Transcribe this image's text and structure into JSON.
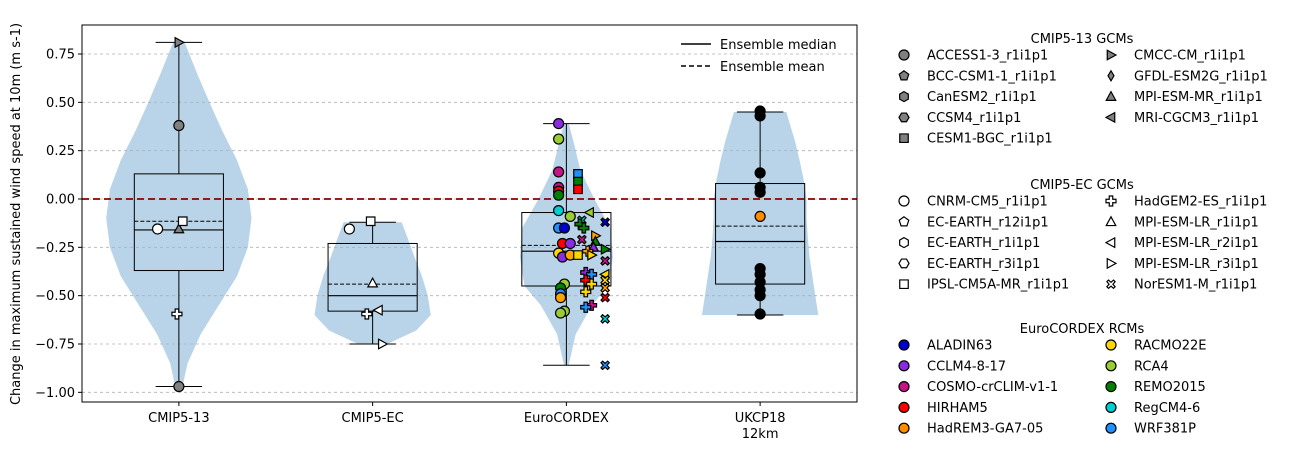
{
  "chart_data": {
    "type": "violin-box-strip",
    "xlabel": "",
    "ylabel": "Change in maximum sustained wind speed at 10m (m s-1)",
    "ylim": [
      -1.05,
      0.9
    ],
    "yticks": [
      0.75,
      0.5,
      0.25,
      0.0,
      -0.25,
      -0.5,
      -0.75,
      -1.0
    ],
    "ytick_labels": [
      "0.75",
      "0.50",
      "0.25",
      "0.00",
      "−0.25",
      "−0.50",
      "−0.75",
      "−1.00"
    ],
    "grid": "horizontal dashed",
    "reference_line": {
      "y": 0.0,
      "color": "#8b0000",
      "style": "dashed"
    },
    "violin_color": "#b9d4e8",
    "categories": [
      {
        "name": "CMIP5-13",
        "tick_label": [
          "CMIP5-13"
        ],
        "box": {
          "q1": -0.37,
          "median": -0.16,
          "mean": -0.115,
          "q3": 0.13,
          "whislo": -0.97,
          "whishi": 0.81
        },
        "violin": {
          "ymin": -0.97,
          "ymax": 0.81,
          "scale": 0.75,
          "profile": [
            [
              -0.97,
              0.05
            ],
            [
              -0.85,
              0.12
            ],
            [
              -0.7,
              0.3
            ],
            [
              -0.55,
              0.55
            ],
            [
              -0.4,
              0.8
            ],
            [
              -0.25,
              0.95
            ],
            [
              -0.1,
              1.0
            ],
            [
              0.05,
              0.95
            ],
            [
              0.2,
              0.8
            ],
            [
              0.35,
              0.6
            ],
            [
              0.5,
              0.42
            ],
            [
              0.65,
              0.25
            ],
            [
              0.81,
              0.08
            ]
          ]
        }
      },
      {
        "name": "CMIP5-EC",
        "tick_label": [
          "CMIP5-EC"
        ],
        "box": {
          "q1": -0.58,
          "median": -0.5,
          "mean": -0.44,
          "q3": -0.23,
          "whislo": -0.75,
          "whishi": -0.12
        },
        "violin": {
          "ymin": -0.75,
          "ymax": -0.12,
          "scale": 0.6,
          "profile": [
            [
              -0.75,
              0.25
            ],
            [
              -0.68,
              0.75
            ],
            [
              -0.6,
              1.0
            ],
            [
              -0.5,
              0.95
            ],
            [
              -0.4,
              0.85
            ],
            [
              -0.3,
              0.72
            ],
            [
              -0.2,
              0.6
            ],
            [
              -0.12,
              0.5
            ]
          ]
        }
      },
      {
        "name": "EuroCORDEX",
        "tick_label": [
          "EuroCORDEX"
        ],
        "box": {
          "q1": -0.45,
          "median": -0.27,
          "mean": -0.24,
          "q3": -0.07,
          "whislo": -0.86,
          "whishi": 0.39
        },
        "violin": {
          "ymin": -0.86,
          "ymax": 0.39,
          "scale": 0.48,
          "profile": [
            [
              -0.86,
              0.05
            ],
            [
              -0.7,
              0.2
            ],
            [
              -0.55,
              0.55
            ],
            [
              -0.45,
              0.9
            ],
            [
              -0.3,
              1.0
            ],
            [
              -0.15,
              0.95
            ],
            [
              0.0,
              0.6
            ],
            [
              0.15,
              0.3
            ],
            [
              0.3,
              0.15
            ],
            [
              0.39,
              0.05
            ]
          ]
        }
      },
      {
        "name": "UKCP18 12km",
        "tick_label": [
          "UKCP18",
          "12km"
        ],
        "box": {
          "q1": -0.44,
          "median": -0.22,
          "mean": -0.14,
          "q3": 0.08,
          "whislo": -0.6,
          "whishi": 0.45
        },
        "violin": {
          "ymin": -0.6,
          "ymax": 0.45,
          "scale": 0.6,
          "profile": [
            [
              -0.6,
              1.0
            ],
            [
              -0.5,
              0.95
            ],
            [
              -0.4,
              0.9
            ],
            [
              -0.3,
              0.85
            ],
            [
              -0.2,
              0.82
            ],
            [
              -0.1,
              0.8
            ],
            [
              0.0,
              0.8
            ],
            [
              0.1,
              0.75
            ],
            [
              0.2,
              0.68
            ],
            [
              0.3,
              0.6
            ],
            [
              0.4,
              0.5
            ],
            [
              0.45,
              0.45
            ]
          ]
        }
      }
    ],
    "points": [
      {
        "cat": 0,
        "dx": 0.0,
        "y": 0.81,
        "marker": ">",
        "fill": "#808080"
      },
      {
        "cat": 0,
        "dx": 0.0,
        "y": 0.38,
        "marker": "o",
        "fill": "#808080"
      },
      {
        "cat": 0,
        "dx": -0.11,
        "y": -0.155,
        "marker": "o",
        "fill": "#ffffff"
      },
      {
        "cat": 0,
        "dx": 0.0,
        "y": -0.155,
        "marker": "^",
        "fill": "#808080"
      },
      {
        "cat": 0,
        "dx": 0.02,
        "y": -0.115,
        "marker": "s",
        "fill": "#ffffff"
      },
      {
        "cat": 0,
        "dx": -0.01,
        "y": -0.595,
        "marker": "P",
        "fill": "#ffffff"
      },
      {
        "cat": 0,
        "dx": 0.0,
        "y": -0.97,
        "marker": "o",
        "fill": "#808080"
      },
      {
        "cat": 1,
        "dx": -0.12,
        "y": -0.155,
        "marker": "o",
        "fill": "#ffffff"
      },
      {
        "cat": 1,
        "dx": -0.01,
        "y": -0.115,
        "marker": "s",
        "fill": "#ffffff"
      },
      {
        "cat": 1,
        "dx": 0.0,
        "y": -0.435,
        "marker": "^",
        "fill": "#ffffff"
      },
      {
        "cat": 1,
        "dx": 0.03,
        "y": -0.575,
        "marker": "<",
        "fill": "#ffffff"
      },
      {
        "cat": 1,
        "dx": -0.03,
        "y": -0.595,
        "marker": "P",
        "fill": "#ffffff"
      },
      {
        "cat": 1,
        "dx": 0.05,
        "y": -0.75,
        "marker": ">",
        "fill": "#ffffff"
      },
      {
        "cat": 2,
        "dx": -0.04,
        "y": 0.39,
        "marker": "o",
        "fill": "#8a2be2"
      },
      {
        "cat": 2,
        "dx": -0.04,
        "y": 0.31,
        "marker": "o",
        "fill": "#9acd32"
      },
      {
        "cat": 2,
        "dx": -0.04,
        "y": 0.14,
        "marker": "o",
        "fill": "#c71585"
      },
      {
        "cat": 2,
        "dx": 0.06,
        "y": 0.13,
        "marker": "s",
        "fill": "#1e90ff"
      },
      {
        "cat": 2,
        "dx": 0.06,
        "y": 0.09,
        "marker": "s",
        "fill": "#008000"
      },
      {
        "cat": 2,
        "dx": -0.04,
        "y": 0.06,
        "marker": "o",
        "fill": "#c71585"
      },
      {
        "cat": 2,
        "dx": -0.04,
        "y": 0.04,
        "marker": "o",
        "fill": "#ff0000"
      },
      {
        "cat": 2,
        "dx": 0.06,
        "y": 0.05,
        "marker": "s",
        "fill": "#ff0000"
      },
      {
        "cat": 2,
        "dx": -0.04,
        "y": 0.02,
        "marker": "o",
        "fill": "#008000"
      },
      {
        "cat": 2,
        "dx": -0.04,
        "y": -0.06,
        "marker": "o",
        "fill": "#00ced1"
      },
      {
        "cat": 2,
        "dx": 0.12,
        "y": -0.07,
        "marker": "<",
        "fill": "#9acd32"
      },
      {
        "cat": 2,
        "dx": 0.02,
        "y": -0.09,
        "marker": "o",
        "fill": "#9acd32"
      },
      {
        "cat": 2,
        "dx": 0.08,
        "y": -0.11,
        "marker": "X",
        "fill": "#00ced1"
      },
      {
        "cat": 2,
        "dx": 0.2,
        "y": -0.12,
        "marker": "X",
        "fill": "#0000cd"
      },
      {
        "cat": 2,
        "dx": 0.07,
        "y": -0.13,
        "marker": "P",
        "fill": "#008000"
      },
      {
        "cat": 2,
        "dx": 0.09,
        "y": -0.15,
        "marker": "P",
        "fill": "#008000"
      },
      {
        "cat": 2,
        "dx": -0.04,
        "y": -0.15,
        "marker": "o",
        "fill": "#1e90ff"
      },
      {
        "cat": 2,
        "dx": -0.01,
        "y": -0.15,
        "marker": "o",
        "fill": "#0000cd"
      },
      {
        "cat": 2,
        "dx": 0.15,
        "y": -0.19,
        "marker": ">",
        "fill": "#ffa500"
      },
      {
        "cat": 2,
        "dx": 0.15,
        "y": -0.22,
        "marker": "^",
        "fill": "#008000"
      },
      {
        "cat": 2,
        "dx": 0.08,
        "y": -0.21,
        "marker": "X",
        "fill": "#c71585"
      },
      {
        "cat": 2,
        "dx": -0.02,
        "y": -0.23,
        "marker": "o",
        "fill": "#ff0000"
      },
      {
        "cat": 2,
        "dx": 0.02,
        "y": -0.23,
        "marker": "o",
        "fill": "#8a2be2"
      },
      {
        "cat": 2,
        "dx": 0.14,
        "y": -0.25,
        "marker": "^",
        "fill": "#8a2be2"
      },
      {
        "cat": 2,
        "dx": 0.2,
        "y": -0.26,
        "marker": ">",
        "fill": "#008000"
      },
      {
        "cat": 2,
        "dx": 0.11,
        "y": -0.27,
        "marker": "P",
        "fill": "#ffa500"
      },
      {
        "cat": 2,
        "dx": -0.04,
        "y": -0.28,
        "marker": "o",
        "fill": "#ffd700"
      },
      {
        "cat": 2,
        "dx": -0.02,
        "y": -0.3,
        "marker": "o",
        "fill": "#8a2be2"
      },
      {
        "cat": 2,
        "dx": 0.02,
        "y": -0.29,
        "marker": "o",
        "fill": "#ffa500"
      },
      {
        "cat": 2,
        "dx": 0.06,
        "y": -0.29,
        "marker": "s",
        "fill": "#ffd700"
      },
      {
        "cat": 2,
        "dx": 0.13,
        "y": -0.29,
        "marker": ">",
        "fill": "#ffd700"
      },
      {
        "cat": 2,
        "dx": 0.2,
        "y": -0.32,
        "marker": "X",
        "fill": "#c71585"
      },
      {
        "cat": 2,
        "dx": 0.1,
        "y": -0.38,
        "marker": "P",
        "fill": "#8a2be2"
      },
      {
        "cat": 2,
        "dx": 0.13,
        "y": -0.39,
        "marker": "P",
        "fill": "#1e90ff"
      },
      {
        "cat": 2,
        "dx": 0.2,
        "y": -0.39,
        "marker": "<",
        "fill": "#ffd700"
      },
      {
        "cat": 2,
        "dx": 0.2,
        "y": -0.42,
        "marker": "X",
        "fill": "#ffd700"
      },
      {
        "cat": 2,
        "dx": 0.1,
        "y": -0.42,
        "marker": "P",
        "fill": "#ff0000"
      },
      {
        "cat": 2,
        "dx": 0.13,
        "y": -0.44,
        "marker": "P",
        "fill": "#ffd700"
      },
      {
        "cat": 2,
        "dx": -0.01,
        "y": -0.44,
        "marker": "o",
        "fill": "#9acd32"
      },
      {
        "cat": 2,
        "dx": -0.03,
        "y": -0.46,
        "marker": "o",
        "fill": "#008000"
      },
      {
        "cat": 2,
        "dx": 0.2,
        "y": -0.46,
        "marker": "X",
        "fill": "#ffa500"
      },
      {
        "cat": 2,
        "dx": -0.03,
        "y": -0.49,
        "marker": "o",
        "fill": "#1e90ff"
      },
      {
        "cat": 2,
        "dx": -0.03,
        "y": -0.51,
        "marker": "o",
        "fill": "#ffa500"
      },
      {
        "cat": 2,
        "dx": 0.1,
        "y": -0.48,
        "marker": "P",
        "fill": "#ffd700"
      },
      {
        "cat": 2,
        "dx": 0.2,
        "y": -0.51,
        "marker": "X",
        "fill": "#ff0000"
      },
      {
        "cat": 2,
        "dx": 0.13,
        "y": -0.55,
        "marker": "P",
        "fill": "#c71585"
      },
      {
        "cat": 2,
        "dx": 0.1,
        "y": -0.56,
        "marker": "P",
        "fill": "#1e90ff"
      },
      {
        "cat": 2,
        "dx": -0.01,
        "y": -0.58,
        "marker": "o",
        "fill": "#9acd32"
      },
      {
        "cat": 2,
        "dx": -0.03,
        "y": -0.59,
        "marker": "o",
        "fill": "#9acd32"
      },
      {
        "cat": 2,
        "dx": 0.2,
        "y": -0.62,
        "marker": "X",
        "fill": "#00ced1"
      },
      {
        "cat": 2,
        "dx": 0.2,
        "y": -0.86,
        "marker": "X",
        "fill": "#1e90ff"
      },
      {
        "cat": 3,
        "dx": 0.0,
        "y": 0.455,
        "marker": "o",
        "fill": "#000000"
      },
      {
        "cat": 3,
        "dx": 0.0,
        "y": 0.43,
        "marker": "o",
        "fill": "#000000"
      },
      {
        "cat": 3,
        "dx": 0.0,
        "y": 0.135,
        "marker": "o",
        "fill": "#000000"
      },
      {
        "cat": 3,
        "dx": 0.0,
        "y": 0.06,
        "marker": "o",
        "fill": "#000000"
      },
      {
        "cat": 3,
        "dx": 0.0,
        "y": 0.035,
        "marker": "o",
        "fill": "#000000"
      },
      {
        "cat": 3,
        "dx": 0.0,
        "y": -0.09,
        "marker": "o",
        "fill": "#ff8c00"
      },
      {
        "cat": 3,
        "dx": 0.0,
        "y": -0.36,
        "marker": "o",
        "fill": "#000000"
      },
      {
        "cat": 3,
        "dx": 0.0,
        "y": -0.39,
        "marker": "o",
        "fill": "#000000"
      },
      {
        "cat": 3,
        "dx": 0.0,
        "y": -0.43,
        "marker": "o",
        "fill": "#000000"
      },
      {
        "cat": 3,
        "dx": 0.0,
        "y": -0.47,
        "marker": "o",
        "fill": "#000000"
      },
      {
        "cat": 3,
        "dx": 0.0,
        "y": -0.5,
        "marker": "o",
        "fill": "#000000"
      },
      {
        "cat": 3,
        "dx": 0.0,
        "y": -0.595,
        "marker": "o",
        "fill": "#000000"
      }
    ],
    "inner_legend": [
      {
        "label": "Ensemble median",
        "style": "solid"
      },
      {
        "label": "Ensemble mean",
        "style": "dashed"
      }
    ],
    "legend_groups": [
      {
        "title": "CMIP5-13 GCMs",
        "items": [
          {
            "label": "ACCESS1-3_r1i1p1",
            "marker": "o",
            "fill": "#808080"
          },
          {
            "label": "BCC-CSM1-1_r1i1p1",
            "marker": "p",
            "fill": "#808080"
          },
          {
            "label": "CanESM2_r1i1p1",
            "marker": "h",
            "fill": "#808080"
          },
          {
            "label": "CCSM4_r1i1p1",
            "marker": "H",
            "fill": "#808080"
          },
          {
            "label": "CESM1-BGC_r1i1p1",
            "marker": "s",
            "fill": "#808080"
          },
          {
            "label": "CMCC-CM_r1i1p1",
            "marker": ">",
            "fill": "#808080"
          },
          {
            "label": "GFDL-ESM2G_r1i1p1",
            "marker": "d",
            "fill": "#808080"
          },
          {
            "label": "MPI-ESM-MR_r1i1p1",
            "marker": "^",
            "fill": "#808080"
          },
          {
            "label": "MRI-CGCM3_r1i1p1",
            "marker": "<",
            "fill": "#808080"
          }
        ]
      },
      {
        "title": "CMIP5-EC GCMs",
        "items": [
          {
            "label": "CNRM-CM5_r1i1p1",
            "marker": "o",
            "fill": "#ffffff"
          },
          {
            "label": "EC-EARTH_r12i1p1",
            "marker": "p",
            "fill": "#ffffff"
          },
          {
            "label": "EC-EARTH_r1i1p1",
            "marker": "h",
            "fill": "#ffffff"
          },
          {
            "label": "EC-EARTH_r3i1p1",
            "marker": "H",
            "fill": "#ffffff"
          },
          {
            "label": "IPSL-CM5A-MR_r1i1p1",
            "marker": "s",
            "fill": "#ffffff"
          },
          {
            "label": "HadGEM2-ES_r1i1p1",
            "marker": "P",
            "fill": "#ffffff"
          },
          {
            "label": "MPI-ESM-LR_r1i1p1",
            "marker": "^",
            "fill": "#ffffff"
          },
          {
            "label": "MPI-ESM-LR_r2i1p1",
            "marker": "<",
            "fill": "#ffffff"
          },
          {
            "label": "MPI-ESM-LR_r3i1p1",
            "marker": ">",
            "fill": "#ffffff"
          },
          {
            "label": "NorESM1-M_r1i1p1",
            "marker": "X",
            "fill": "#ffffff"
          }
        ]
      },
      {
        "title": "EuroCORDEX RCMs",
        "items": [
          {
            "label": "ALADIN63",
            "marker": "o",
            "fill": "#0000cd"
          },
          {
            "label": "CCLM4-8-17",
            "marker": "o",
            "fill": "#8a2be2"
          },
          {
            "label": "COSMO-crCLIM-v1-1",
            "marker": "o",
            "fill": "#c71585"
          },
          {
            "label": "HIRHAM5",
            "marker": "o",
            "fill": "#ff0000"
          },
          {
            "label": "HadREM3-GA7-05",
            "marker": "o",
            "fill": "#ff8c00"
          },
          {
            "label": "RACMO22E",
            "marker": "o",
            "fill": "#ffd700"
          },
          {
            "label": "RCA4",
            "marker": "o",
            "fill": "#9acd32"
          },
          {
            "label": "REMO2015",
            "marker": "o",
            "fill": "#008000"
          },
          {
            "label": "RegCM4-6",
            "marker": "o",
            "fill": "#00ced1"
          },
          {
            "label": "WRF381P",
            "marker": "o",
            "fill": "#1e90ff"
          }
        ]
      }
    ]
  }
}
